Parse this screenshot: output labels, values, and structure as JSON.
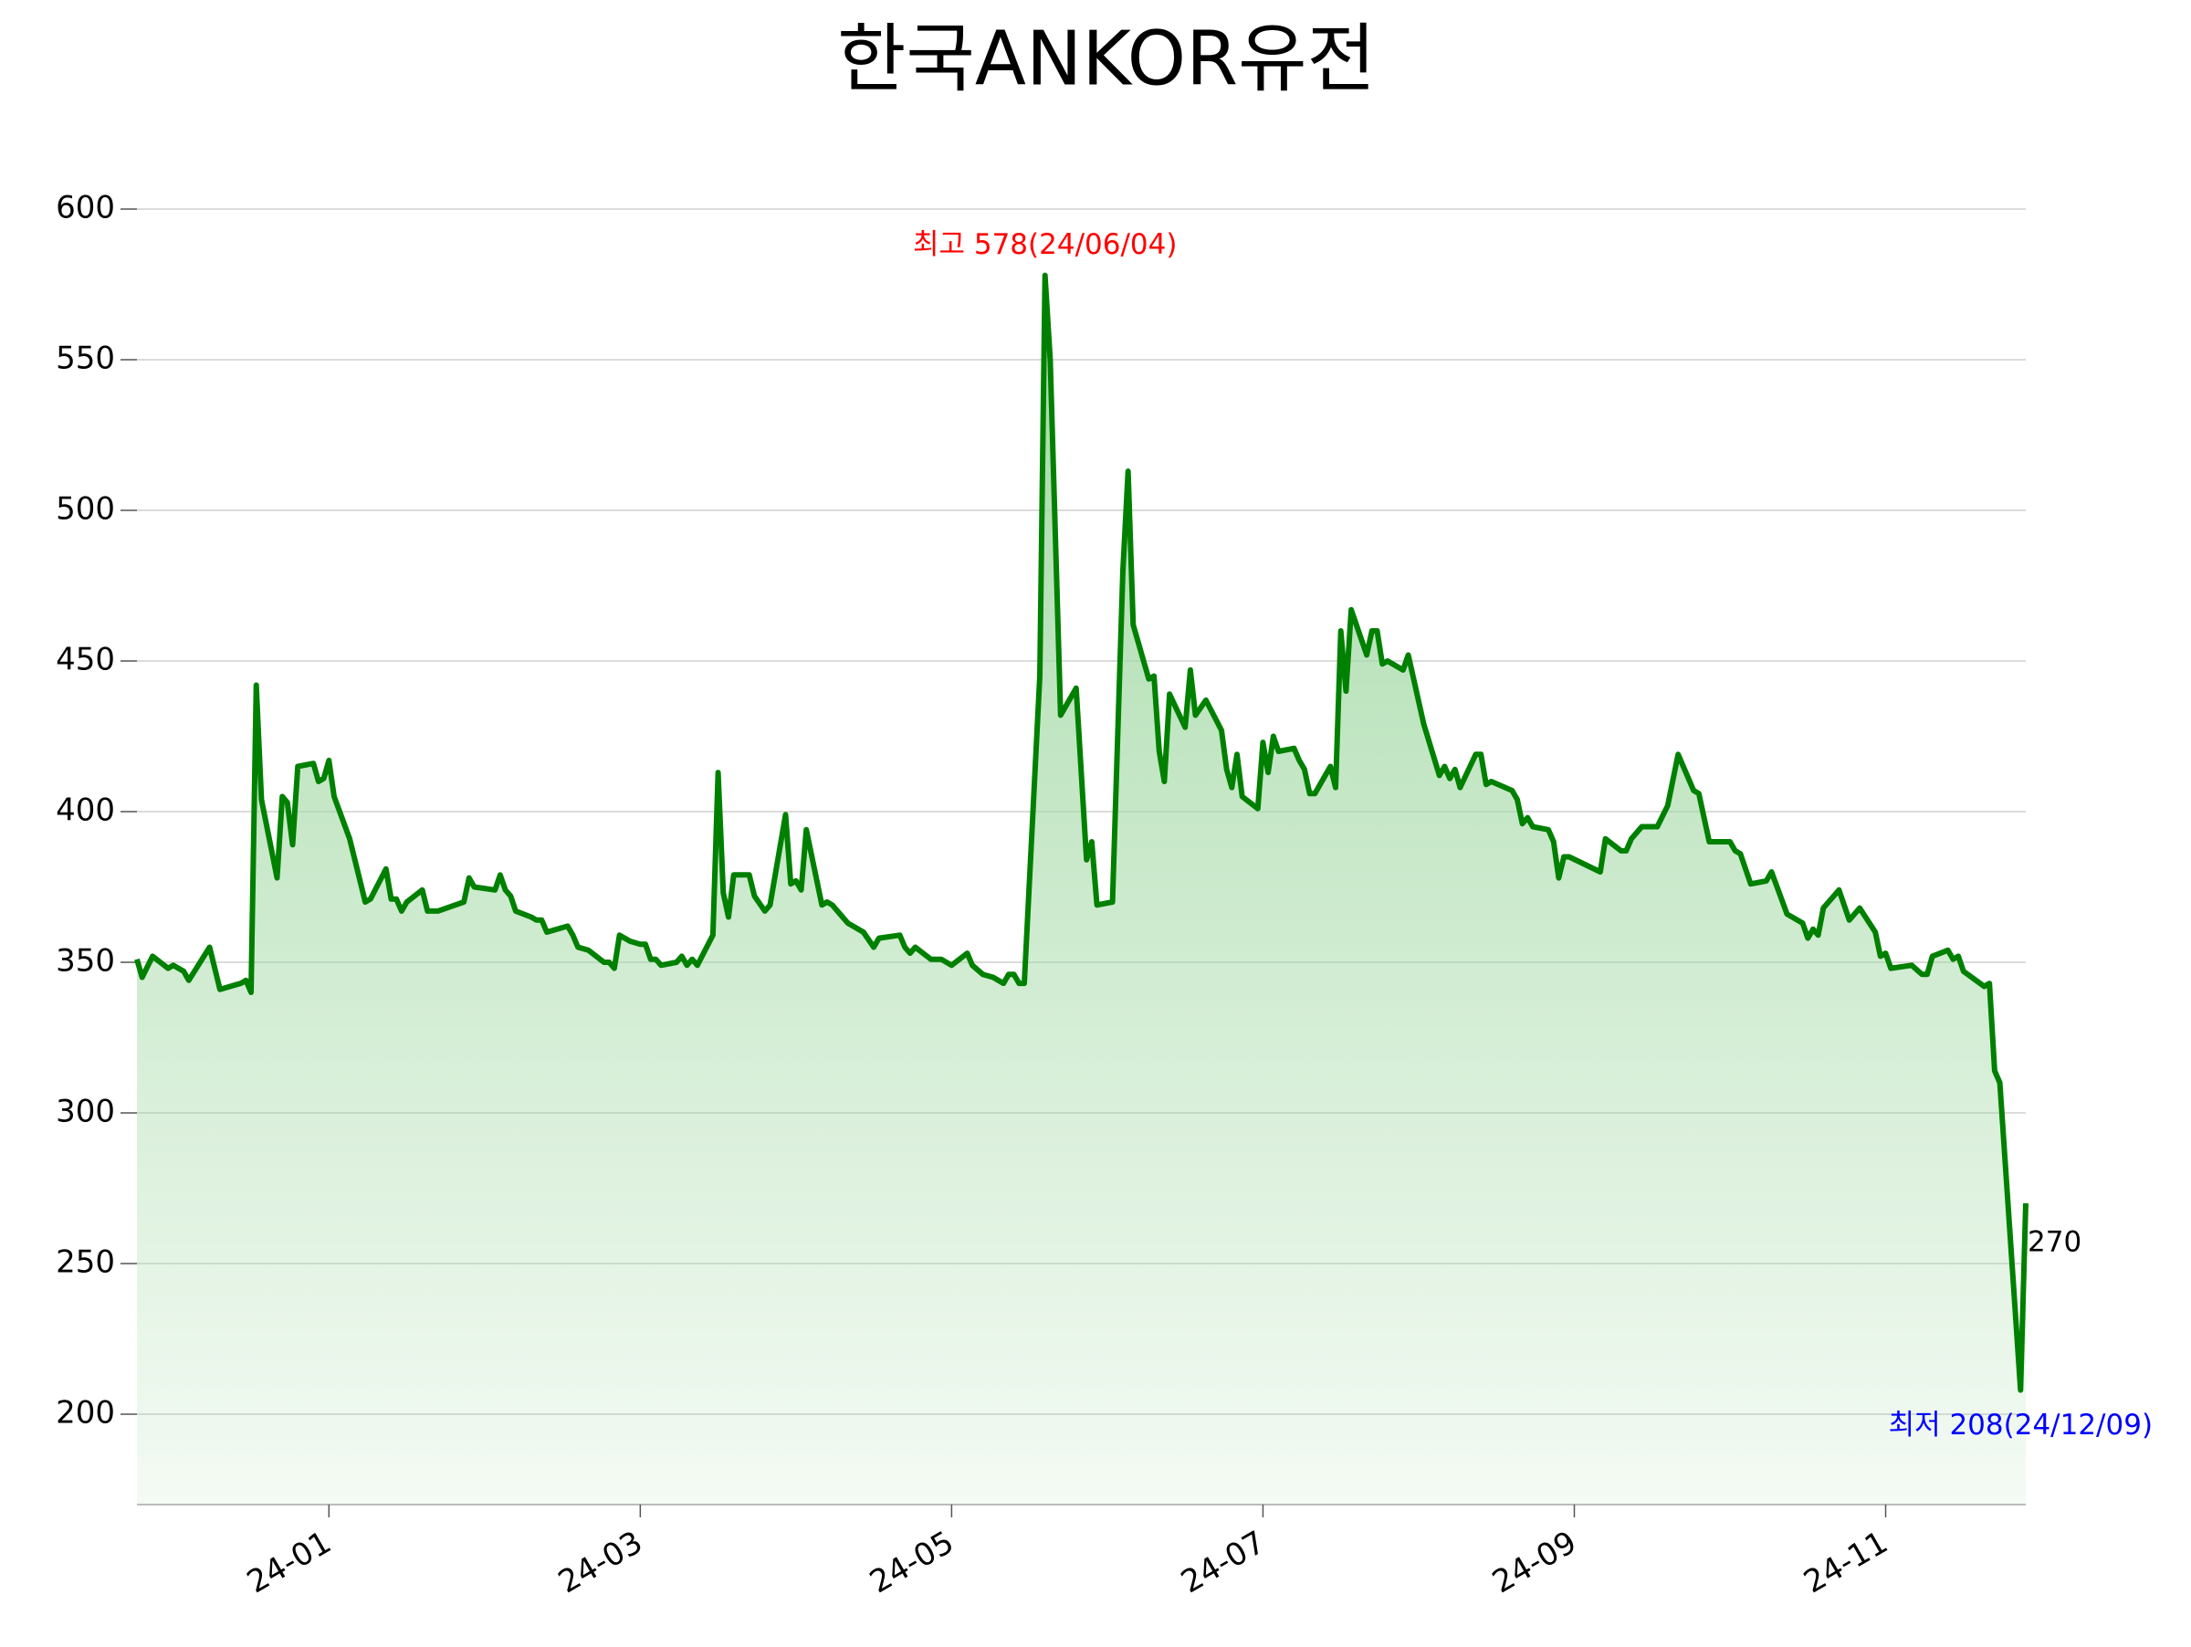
{
  "chart_data": {
    "type": "line",
    "title": "한국ANKOR유전",
    "x": [
      "2023-12-12",
      "2023-12-13",
      "2023-12-15",
      "2023-12-18",
      "2023-12-19",
      "2023-12-21",
      "2023-12-22",
      "2023-12-26",
      "2023-12-28",
      "2024-01-01",
      "2024-01-02",
      "2024-01-03",
      "2024-01-04",
      "2024-01-05",
      "2024-01-08",
      "2024-01-09",
      "2024-01-10",
      "2024-01-11",
      "2024-01-12",
      "2024-01-15",
      "2024-01-16",
      "2024-01-17",
      "2024-01-18",
      "2024-01-19",
      "2024-01-22",
      "2024-01-24",
      "2024-01-25",
      "2024-01-26",
      "2024-01-29",
      "2024-01-30",
      "2024-01-31",
      "2024-02-01",
      "2024-02-02",
      "2024-02-05",
      "2024-02-06",
      "2024-02-08",
      "2024-02-13",
      "2024-02-14",
      "2024-02-15",
      "2024-02-19",
      "2024-02-20",
      "2024-02-21",
      "2024-02-22",
      "2024-02-23",
      "2024-02-26",
      "2024-02-27",
      "2024-02-28",
      "2024-02-29",
      "2024-03-04",
      "2024-03-05",
      "2024-03-06",
      "2024-03-08",
      "2024-03-11",
      "2024-03-12",
      "2024-03-13",
      "2024-03-14",
      "2024-03-16",
      "2024-03-18",
      "2024-03-19",
      "2024-03-20",
      "2024-03-21",
      "2024-03-22",
      "2024-03-25",
      "2024-03-26",
      "2024-03-27",
      "2024-03-28",
      "2024-03-29",
      "2024-04-01",
      "2024-04-02",
      "2024-04-03",
      "2024-04-04",
      "2024-04-05",
      "2024-04-08",
      "2024-04-09",
      "2024-04-11",
      "2024-04-12",
      "2024-04-15",
      "2024-04-16",
      "2024-04-17",
      "2024-04-18",
      "2024-04-19",
      "2024-04-22",
      "2024-04-23",
      "2024-04-24",
      "2024-04-26",
      "2024-04-27",
      "2024-04-30",
      "2024-05-02",
      "2024-05-03",
      "2024-05-07",
      "2024-05-08",
      "2024-05-09",
      "2024-05-10",
      "2024-05-13",
      "2024-05-15",
      "2024-05-17",
      "2024-05-20",
      "2024-05-21",
      "2024-05-23",
      "2024-05-25",
      "2024-05-27",
      "2024-05-28",
      "2024-05-29",
      "2024-05-30",
      "2024-05-31",
      "2024-06-03",
      "2024-06-04",
      "2024-06-05",
      "2024-06-07",
      "2024-06-10",
      "2024-06-12",
      "2024-06-13",
      "2024-06-14",
      "2024-06-17",
      "2024-06-19",
      "2024-06-20",
      "2024-06-21",
      "2024-06-24",
      "2024-06-25",
      "2024-06-26",
      "2024-06-27",
      "2024-06-28",
      "2024-07-01",
      "2024-07-02",
      "2024-07-03",
      "2024-07-05",
      "2024-07-08",
      "2024-07-09",
      "2024-07-10",
      "2024-07-11",
      "2024-07-12",
      "2024-07-15",
      "2024-07-16",
      "2024-07-17",
      "2024-07-18",
      "2024-07-19",
      "2024-07-22",
      "2024-07-23",
      "2024-07-24",
      "2024-07-25",
      "2024-07-26",
      "2024-07-29",
      "2024-07-30",
      "2024-07-31",
      "2024-08-01",
      "2024-08-02",
      "2024-08-05",
      "2024-08-06",
      "2024-08-07",
      "2024-08-08",
      "2024-08-09",
      "2024-08-12",
      "2024-08-13",
      "2024-08-16",
      "2024-08-19",
      "2024-08-20",
      "2024-08-21",
      "2024-08-22",
      "2024-08-23",
      "2024-08-26",
      "2024-08-27",
      "2024-08-28",
      "2024-08-29",
      "2024-09-02",
      "2024-09-03",
      "2024-09-04",
      "2024-09-05",
      "2024-09-06",
      "2024-09-09",
      "2024-09-10",
      "2024-09-11",
      "2024-09-12",
      "2024-09-13",
      "2024-09-19",
      "2024-09-20",
      "2024-09-23",
      "2024-09-24",
      "2024-09-25",
      "2024-09-27",
      "2024-09-30",
      "2024-10-02",
      "2024-10-04",
      "2024-10-07",
      "2024-10-08",
      "2024-10-10",
      "2024-10-14",
      "2024-10-15",
      "2024-10-16",
      "2024-10-18",
      "2024-10-21",
      "2024-10-22",
      "2024-10-25",
      "2024-10-28",
      "2024-10-29",
      "2024-10-30",
      "2024-10-31",
      "2024-11-01",
      "2024-11-04",
      "2024-11-06",
      "2024-11-08",
      "2024-11-11",
      "2024-11-12",
      "2024-11-13",
      "2024-11-14",
      "2024-11-18",
      "2024-11-20",
      "2024-11-21",
      "2024-11-22",
      "2024-11-25",
      "2024-11-26",
      "2024-11-27",
      "2024-11-28",
      "2024-12-02",
      "2024-12-03",
      "2024-12-04",
      "2024-12-05",
      "2024-12-09",
      "2024-12-10"
    ],
    "values": [
      351,
      345,
      352,
      348,
      349,
      347,
      344,
      355,
      341,
      343,
      344,
      340,
      442,
      404,
      378,
      405,
      403,
      389,
      415,
      416,
      410,
      411,
      417,
      405,
      391,
      377,
      370,
      371,
      381,
      371,
      371,
      367,
      370,
      374,
      367,
      367,
      370,
      378,
      375,
      374,
      379,
      374,
      372,
      367,
      365,
      364,
      364,
      360,
      362,
      359,
      355,
      354,
      350,
      350,
      348,
      359,
      357,
      356,
      356,
      351,
      351,
      349,
      350,
      352,
      349,
      351,
      349,
      359,
      413,
      373,
      365,
      379,
      379,
      372,
      367,
      369,
      399,
      376,
      377,
      374,
      394,
      369,
      370,
      369,
      365,
      363,
      360,
      355,
      358,
      359,
      355,
      353,
      355,
      351,
      351,
      349,
      353,
      349,
      346,
      345,
      343,
      346,
      346,
      343,
      343,
      445,
      578,
      550,
      432,
      441,
      384,
      390,
      369,
      370,
      480,
      513,
      462,
      444,
      445,
      420,
      410,
      439,
      428,
      447,
      432,
      437,
      427,
      414,
      408,
      419,
      405,
      401,
      423,
      413,
      425,
      420,
      421,
      417,
      414,
      406,
      406,
      415,
      408,
      460,
      440,
      467,
      452,
      460,
      460,
      449,
      450,
      447,
      452,
      429,
      412,
      415,
      411,
      414,
      408,
      419,
      419,
      409,
      410,
      407,
      404,
      396,
      398,
      395,
      394,
      390,
      378,
      385,
      385,
      380,
      391,
      387,
      387,
      391,
      395,
      395,
      402,
      419,
      407,
      406,
      390,
      390,
      387,
      386,
      376,
      377,
      380,
      366,
      363,
      358,
      361,
      359,
      368,
      374,
      364,
      368,
      360,
      352,
      353,
      348,
      349,
      346,
      346,
      352,
      354,
      351,
      352,
      347,
      342,
      343,
      314,
      310,
      208,
      270
    ],
    "color": "green",
    "fill_color": "#a3d9a5",
    "xlim": [
      "2023-12-12",
      "2024-12-10"
    ],
    "xticks": [
      {
        "value": "2024-01-18",
        "label": "24-01"
      },
      {
        "value": "2024-03-18",
        "label": "24-03"
      },
      {
        "value": "2024-05-17",
        "label": "24-05"
      },
      {
        "value": "2024-07-16",
        "label": "24-07"
      },
      {
        "value": "2024-09-14",
        "label": "24-09"
      },
      {
        "value": "2024-11-13",
        "label": "24-11"
      }
    ],
    "ylim": [
      170,
      600
    ],
    "yticks": [
      200,
      250,
      300,
      350,
      400,
      450,
      500,
      550,
      600
    ],
    "grid": true,
    "annotations": [
      {
        "text": "최고 578(24/06/04)",
        "x": "2024-06-04",
        "y": 578,
        "color": "red",
        "position": "above"
      },
      {
        "text": "최저 208(24/12/09)",
        "x": "2024-12-09",
        "y": 208,
        "color": "blue",
        "position": "below"
      },
      {
        "text": "270",
        "x": "2024-12-10",
        "y": 270,
        "color": "black",
        "position": "right"
      }
    ]
  }
}
